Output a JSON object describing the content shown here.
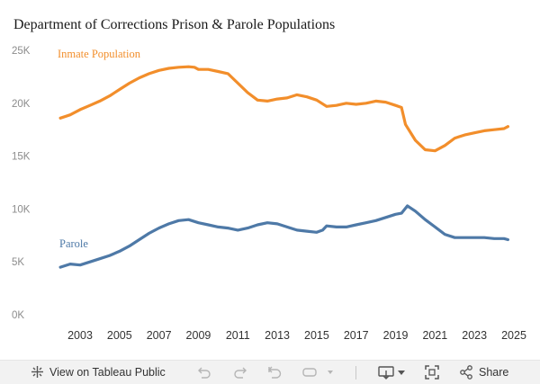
{
  "title": "Department of Corrections Prison & Parole Populations",
  "chart_data": {
    "type": "line",
    "title": "Department of Corrections Prison & Parole Populations",
    "xlabel": "",
    "ylabel": "",
    "xlim": [
      2001.6,
      2025.4
    ],
    "ylim": [
      0,
      25000
    ],
    "y_ticks": [
      0,
      5000,
      10000,
      15000,
      20000,
      25000
    ],
    "y_tick_labels": [
      "0K",
      "5K",
      "10K",
      "15K",
      "20K",
      "25K"
    ],
    "x_ticks": [
      2003,
      2005,
      2007,
      2009,
      2011,
      2013,
      2015,
      2017,
      2019,
      2021,
      2023,
      2025
    ],
    "x_tick_labels": [
      "2003",
      "2005",
      "2007",
      "2009",
      "2011",
      "2013",
      "2015",
      "2017",
      "2019",
      "2021",
      "2023",
      "2025"
    ],
    "grid": false,
    "series": [
      {
        "name": "Inmate Population",
        "color": "#f28e2b",
        "x": [
          2002.0,
          2002.5,
          2003.0,
          2003.5,
          2004.0,
          2004.5,
          2005.0,
          2005.5,
          2006.0,
          2006.5,
          2007.0,
          2007.5,
          2008.0,
          2008.5,
          2008.8,
          2009.0,
          2009.5,
          2010.0,
          2010.5,
          2011.0,
          2011.5,
          2012.0,
          2012.5,
          2013.0,
          2013.5,
          2014.0,
          2014.5,
          2015.0,
          2015.5,
          2016.0,
          2016.5,
          2017.0,
          2017.5,
          2018.0,
          2018.5,
          2019.0,
          2019.3,
          2019.5,
          2020.0,
          2020.5,
          2021.0,
          2021.5,
          2022.0,
          2022.5,
          2023.0,
          2023.5,
          2024.0,
          2024.5,
          2024.7
        ],
        "values": [
          18600,
          18900,
          19400,
          19800,
          20200,
          20700,
          21300,
          21900,
          22400,
          22800,
          23100,
          23300,
          23400,
          23450,
          23400,
          23200,
          23200,
          23000,
          22800,
          21900,
          21000,
          20300,
          20200,
          20400,
          20500,
          20800,
          20600,
          20300,
          19700,
          19800,
          20000,
          19900,
          20000,
          20200,
          20100,
          19800,
          19600,
          18000,
          16500,
          15600,
          15500,
          16000,
          16700,
          17000,
          17200,
          17400,
          17500,
          17600,
          17800
        ]
      },
      {
        "name": "Parole",
        "color": "#4e79a7",
        "x": [
          2002.0,
          2002.5,
          2003.0,
          2003.5,
          2004.0,
          2004.5,
          2005.0,
          2005.5,
          2006.0,
          2006.5,
          2007.0,
          2007.5,
          2008.0,
          2008.5,
          2009.0,
          2009.5,
          2010.0,
          2010.5,
          2011.0,
          2011.5,
          2012.0,
          2012.5,
          2013.0,
          2013.5,
          2014.0,
          2014.5,
          2015.0,
          2015.3,
          2015.5,
          2016.0,
          2016.5,
          2017.0,
          2017.5,
          2018.0,
          2018.5,
          2019.0,
          2019.3,
          2019.6,
          2020.0,
          2020.5,
          2021.0,
          2021.5,
          2022.0,
          2022.5,
          2023.0,
          2023.5,
          2024.0,
          2024.5,
          2024.7
        ],
        "values": [
          4500,
          4800,
          4700,
          5000,
          5300,
          5600,
          6000,
          6500,
          7100,
          7700,
          8200,
          8600,
          8900,
          9000,
          8700,
          8500,
          8300,
          8200,
          8000,
          8200,
          8500,
          8700,
          8600,
          8300,
          8000,
          7900,
          7800,
          8000,
          8400,
          8300,
          8300,
          8500,
          8700,
          8900,
          9200,
          9500,
          9600,
          10300,
          9800,
          9000,
          8300,
          7600,
          7300,
          7300,
          7300,
          7300,
          7200,
          7200,
          7100
        ]
      }
    ]
  },
  "toolbar": {
    "view_label": "View on Tableau Public",
    "share_label": "Share",
    "icons": [
      "tableau-logo-icon",
      "undo-icon",
      "redo-icon",
      "revert-icon",
      "refresh-icon",
      "download-icon",
      "fullscreen-icon",
      "share-icon"
    ]
  }
}
